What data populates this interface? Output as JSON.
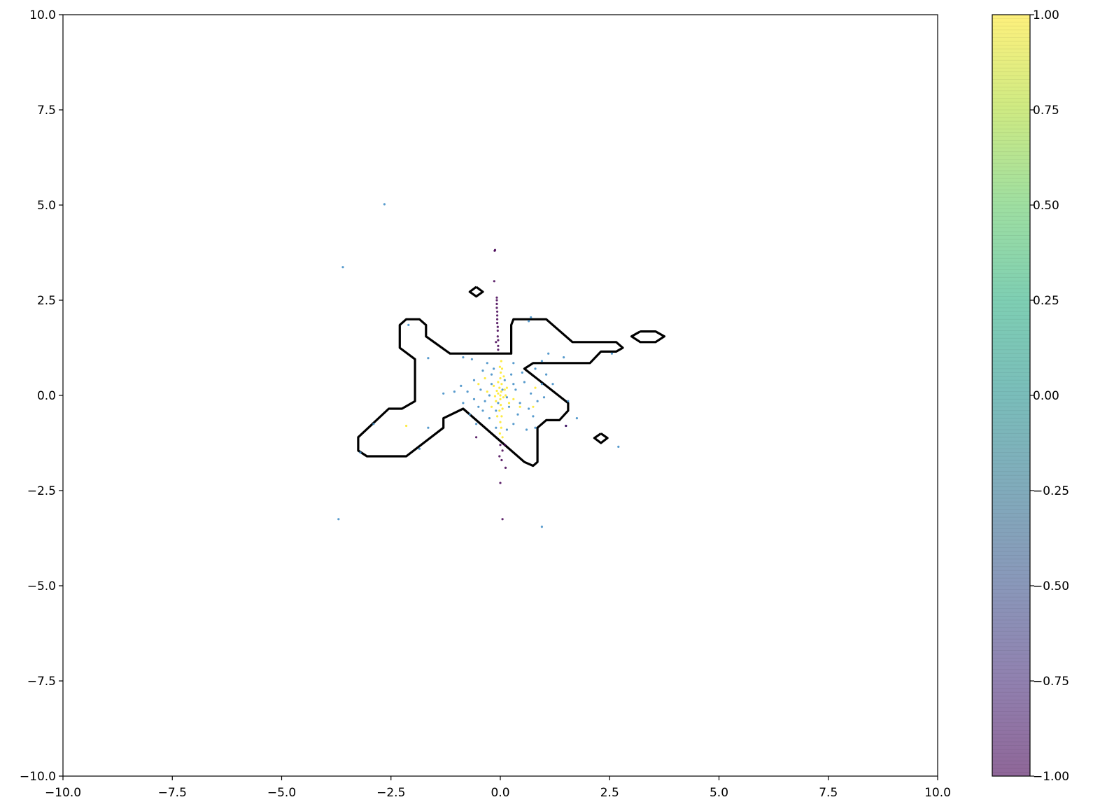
{
  "chart_data": {
    "type": "scatter",
    "title": "",
    "xlabel": "",
    "ylabel": "",
    "xlim": [
      -10,
      10
    ],
    "ylim": [
      -10,
      10
    ],
    "grid": false,
    "x_ticks": [
      "−10.0",
      "−7.5",
      "−5.0",
      "−2.5",
      "0.0",
      "2.5",
      "5.0",
      "7.5",
      "10.0"
    ],
    "y_ticks": [
      "−10.0",
      "−7.5",
      "−5.0",
      "−2.5",
      "0.0",
      "2.5",
      "5.0",
      "7.5",
      "10.0"
    ],
    "colorbar": {
      "colormap": "viridis",
      "range": [
        -1,
        1
      ],
      "ticks": [
        "−1.00",
        "−0.75",
        "−0.50",
        "−0.25",
        "0.00",
        "0.25",
        "0.50",
        "0.75",
        "1.00"
      ]
    },
    "series": [
      {
        "label_value": 0,
        "color": "#3b8ac4",
        "points": [
          [
            -2.65,
            5.02
          ],
          [
            -3.6,
            3.37
          ],
          [
            -3.7,
            -3.25
          ],
          [
            0.95,
            -3.45
          ],
          [
            2.7,
            -1.35
          ],
          [
            -2.1,
            1.85
          ],
          [
            -1.65,
            0.98
          ],
          [
            -2.9,
            -0.75
          ],
          [
            -3.2,
            -1.5
          ],
          [
            -1.85,
            -1.4
          ],
          [
            -1.65,
            -0.85
          ],
          [
            -1.3,
            0.05
          ],
          [
            -0.85,
            1.0
          ],
          [
            -0.65,
            0.95
          ],
          [
            -0.4,
            0.65
          ],
          [
            -0.3,
            0.85
          ],
          [
            -0.2,
            0.55
          ],
          [
            0.3,
            0.85
          ],
          [
            0.65,
            1.95
          ],
          [
            0.7,
            2.05
          ],
          [
            1.1,
            1.1
          ],
          [
            1.45,
            1.0
          ],
          [
            1.55,
            -0.15
          ],
          [
            1.75,
            -0.6
          ],
          [
            1.5,
            -0.8
          ],
          [
            0.8,
            -0.85
          ],
          [
            0.6,
            -0.9
          ],
          [
            0.3,
            -0.75
          ],
          [
            0.15,
            -0.9
          ],
          [
            -0.1,
            -0.85
          ],
          [
            -0.25,
            -0.6
          ],
          [
            -0.5,
            -0.3
          ],
          [
            -0.85,
            -0.2
          ],
          [
            -1.05,
            0.1
          ],
          [
            -0.9,
            0.25
          ],
          [
            -0.6,
            0.4
          ],
          [
            -0.45,
            0.15
          ],
          [
            -0.35,
            -0.15
          ],
          [
            -0.2,
            0.3
          ],
          [
            -0.1,
            -0.4
          ],
          [
            0.1,
            0.4
          ],
          [
            0.2,
            -0.3
          ],
          [
            0.35,
            0.15
          ],
          [
            0.45,
            -0.2
          ],
          [
            0.55,
            0.35
          ],
          [
            0.7,
            0.05
          ],
          [
            0.85,
            -0.15
          ],
          [
            0.95,
            0.3
          ],
          [
            1.05,
            0.55
          ],
          [
            1.2,
            0.3
          ],
          [
            0.8,
            0.7
          ],
          [
            0.5,
            0.6
          ],
          [
            0.25,
            0.55
          ],
          [
            -0.15,
            0.7
          ],
          [
            -0.55,
            -0.75
          ],
          [
            -0.7,
            -0.5
          ],
          [
            0.4,
            -0.5
          ],
          [
            0.65,
            -0.35
          ],
          [
            1.0,
            -0.05
          ],
          [
            0.05,
            0.15
          ],
          [
            -0.05,
            -0.2
          ],
          [
            0.15,
            -0.05
          ],
          [
            -0.25,
            0.0
          ],
          [
            0.3,
            0.3
          ],
          [
            -0.4,
            -0.4
          ],
          [
            2.55,
            1.1
          ],
          [
            0.95,
            0.9
          ],
          [
            -0.75,
            0.1
          ],
          [
            -0.6,
            -0.1
          ],
          [
            0.75,
            -0.55
          ]
        ]
      },
      {
        "label_value": 1,
        "color": "#fde725",
        "points": [
          [
            0.0,
            0.0
          ],
          [
            0.02,
            0.1
          ],
          [
            -0.02,
            0.2
          ],
          [
            0.03,
            0.3
          ],
          [
            0.0,
            0.45
          ],
          [
            0.01,
            0.6
          ],
          [
            -0.01,
            0.75
          ],
          [
            0.02,
            0.9
          ],
          [
            0.0,
            -0.1
          ],
          [
            0.01,
            -0.25
          ],
          [
            -0.02,
            -0.4
          ],
          [
            0.03,
            -0.55
          ],
          [
            0.0,
            -0.7
          ],
          [
            0.02,
            -0.85
          ],
          [
            -0.01,
            -1.0
          ],
          [
            0.05,
            -1.1
          ],
          [
            -0.05,
            0.05
          ],
          [
            0.07,
            -0.05
          ],
          [
            -0.08,
            0.12
          ],
          [
            0.1,
            0.15
          ],
          [
            -0.1,
            -0.15
          ],
          [
            0.12,
            0.0
          ],
          [
            -0.12,
            -0.02
          ],
          [
            0.15,
            0.2
          ],
          [
            -0.15,
            0.25
          ],
          [
            0.2,
            -0.2
          ],
          [
            -0.2,
            -0.3
          ],
          [
            -0.3,
            0.1
          ],
          [
            0.3,
            -0.1
          ],
          [
            -0.35,
            0.45
          ],
          [
            0.45,
            -0.3
          ],
          [
            0.75,
            -0.3
          ],
          [
            -0.5,
            0.3
          ],
          [
            0.8,
            0.2
          ],
          [
            -2.15,
            -0.8
          ],
          [
            -0.05,
            0.35
          ],
          [
            0.05,
            -0.35
          ],
          [
            0.08,
            0.5
          ],
          [
            -0.07,
            -0.55
          ],
          [
            0.04,
            0.7
          ]
        ]
      },
      {
        "label_value": -1,
        "color": "#440154",
        "points": [
          [
            -0.12,
            3.82
          ],
          [
            -0.13,
            3.8
          ],
          [
            -0.14,
            3.0
          ],
          [
            -0.08,
            2.57
          ],
          [
            -0.08,
            2.5
          ],
          [
            -0.08,
            2.4
          ],
          [
            -0.08,
            2.3
          ],
          [
            -0.07,
            2.2
          ],
          [
            -0.07,
            2.1
          ],
          [
            -0.07,
            2.0
          ],
          [
            -0.07,
            1.9
          ],
          [
            -0.06,
            1.8
          ],
          [
            -0.06,
            1.7
          ],
          [
            -0.06,
            1.55
          ],
          [
            -0.05,
            1.45
          ],
          [
            -0.05,
            1.3
          ],
          [
            -0.05,
            1.2
          ],
          [
            -0.1,
            1.4
          ],
          [
            0.0,
            -1.3
          ],
          [
            0.05,
            -1.45
          ],
          [
            -0.02,
            -1.6
          ],
          [
            0.03,
            -1.7
          ],
          [
            0.12,
            -1.9
          ],
          [
            0.0,
            -2.3
          ],
          [
            0.05,
            -3.25
          ],
          [
            -0.55,
            -1.1
          ],
          [
            1.5,
            -0.8
          ],
          [
            0.1,
            -1.3
          ]
        ]
      }
    ],
    "contours": [
      [
        [
          -0.15,
          1.1
        ],
        [
          0.25,
          1.1
        ],
        [
          0.25,
          1.85
        ],
        [
          0.3,
          2.0
        ],
        [
          1.05,
          2.0
        ],
        [
          1.65,
          1.4
        ],
        [
          2.65,
          1.4
        ],
        [
          2.8,
          1.25
        ],
        [
          2.65,
          1.15
        ],
        [
          2.3,
          1.15
        ],
        [
          2.05,
          0.85
        ],
        [
          0.75,
          0.85
        ],
        [
          0.55,
          0.7
        ],
        [
          1.55,
          -0.2
        ],
        [
          1.55,
          -0.4
        ],
        [
          1.35,
          -0.65
        ],
        [
          1.05,
          -0.65
        ],
        [
          0.85,
          -0.85
        ],
        [
          0.85,
          -1.75
        ],
        [
          0.75,
          -1.85
        ],
        [
          0.55,
          -1.75
        ],
        [
          -0.85,
          -0.35
        ],
        [
          -1.3,
          -0.6
        ],
        [
          -1.3,
          -0.85
        ],
        [
          -2.15,
          -1.6
        ],
        [
          -3.05,
          -1.6
        ],
        [
          -3.25,
          -1.45
        ],
        [
          -3.25,
          -1.1
        ],
        [
          -2.55,
          -0.35
        ],
        [
          -2.25,
          -0.35
        ],
        [
          -1.95,
          -0.15
        ],
        [
          -1.95,
          0.95
        ],
        [
          -2.3,
          1.25
        ],
        [
          -2.3,
          1.85
        ],
        [
          -2.15,
          2.0
        ],
        [
          -1.85,
          2.0
        ],
        [
          -1.7,
          1.85
        ],
        [
          -1.7,
          1.55
        ],
        [
          -1.15,
          1.1
        ],
        [
          -0.15,
          1.1
        ]
      ],
      [
        [
          -0.55,
          2.85
        ],
        [
          -0.4,
          2.72
        ],
        [
          -0.55,
          2.6
        ],
        [
          -0.7,
          2.72
        ],
        [
          -0.55,
          2.85
        ]
      ],
      [
        [
          3.2,
          1.68
        ],
        [
          3.55,
          1.68
        ],
        [
          3.75,
          1.55
        ],
        [
          3.55,
          1.4
        ],
        [
          3.2,
          1.4
        ],
        [
          3.0,
          1.55
        ],
        [
          3.2,
          1.68
        ]
      ],
      [
        [
          2.3,
          -1.0
        ],
        [
          2.45,
          -1.12
        ],
        [
          2.3,
          -1.25
        ],
        [
          2.15,
          -1.12
        ],
        [
          2.3,
          -1.0
        ]
      ]
    ]
  }
}
